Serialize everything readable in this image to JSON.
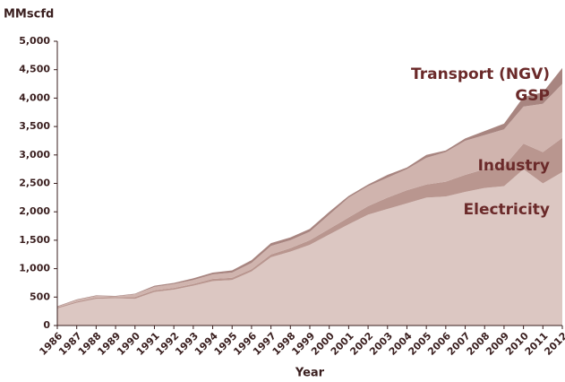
{
  "chart_data": {
    "type": "area",
    "stacked": true,
    "y_label": "MMscfd",
    "x_label": "Year",
    "x": [
      1986,
      1987,
      1988,
      1989,
      1990,
      1991,
      1992,
      1993,
      1994,
      1995,
      1996,
      1997,
      1998,
      1999,
      2000,
      2001,
      2002,
      2003,
      2004,
      2005,
      2006,
      2007,
      2008,
      2009,
      2010,
      2011,
      2012
    ],
    "xlim": [
      1986,
      2012
    ],
    "ylim": [
      0,
      5000
    ],
    "yticks": [
      0,
      500,
      {
        "value": 1000,
        "label": "1,000"
      },
      {
        "value": 1500,
        "label": "1,500"
      },
      {
        "value": 2000,
        "label": "2,000"
      },
      {
        "value": 2500,
        "label": "2,500"
      },
      {
        "value": 3000,
        "label": "3,000"
      },
      {
        "value": 3500,
        "label": "3,500"
      },
      {
        "value": 4000,
        "label": "4,000"
      },
      {
        "value": 4500,
        "label": "4,500"
      },
      {
        "value": 5000,
        "label": "5,000"
      }
    ],
    "series": [
      {
        "name": "Electricity",
        "color": "#dcc7c2",
        "values": [
          300,
          400,
          470,
          480,
          470,
          590,
          630,
          700,
          780,
          800,
          950,
          1200,
          1300,
          1420,
          1600,
          1780,
          1950,
          2050,
          2150,
          2250,
          2270,
          2350,
          2420,
          2450,
          2750,
          2500,
          2700
        ]
      },
      {
        "name": "Industry",
        "color": "#b9968f",
        "values": [
          20,
          20,
          20,
          20,
          30,
          30,
          30,
          30,
          40,
          40,
          40,
          50,
          60,
          80,
          100,
          120,
          150,
          200,
          230,
          230,
          260,
          300,
          330,
          350,
          450,
          550,
          600
        ]
      },
      {
        "name": "GSP",
        "color": "#d0b4ae",
        "values": [
          10,
          30,
          30,
          10,
          50,
          60,
          70,
          70,
          80,
          90,
          110,
          150,
          140,
          150,
          250,
          350,
          350,
          350,
          370,
          470,
          520,
          600,
          600,
          650,
          650,
          850,
          950
        ]
      },
      {
        "name": "Transport (NGV)",
        "color": "#a88580",
        "values": [
          10,
          10,
          10,
          10,
          10,
          20,
          20,
          30,
          30,
          40,
          50,
          50,
          50,
          50,
          50,
          30,
          30,
          50,
          30,
          50,
          30,
          40,
          70,
          100,
          170,
          200,
          280
        ]
      }
    ]
  }
}
